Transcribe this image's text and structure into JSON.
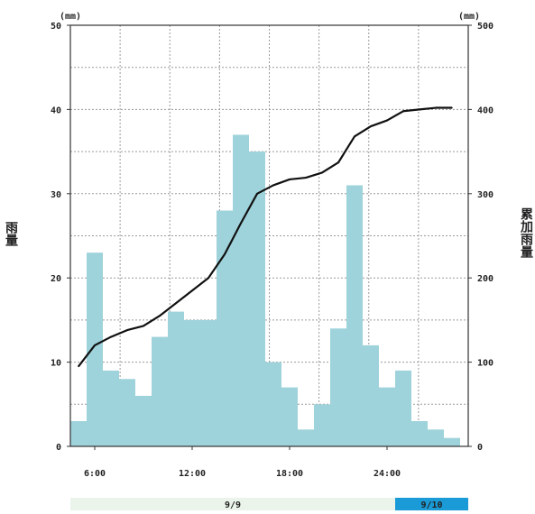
{
  "chart_data": {
    "type": "bar",
    "left_unit": "(mm)",
    "right_unit": "(mm)",
    "ylabel": "雨量",
    "y2label": "累加雨量",
    "ylim": [
      0,
      50
    ],
    "y2lim": [
      0,
      500
    ],
    "yticks": [
      "0",
      "10",
      "20",
      "30",
      "40",
      "50"
    ],
    "y2ticks": [
      "0",
      "100",
      "200",
      "300",
      "400",
      "500"
    ],
    "xlim": [
      4.5,
      29
    ],
    "xticks": [
      {
        "hour": 6,
        "label": "6:00"
      },
      {
        "hour": 12,
        "label": "12:00"
      },
      {
        "hour": 18,
        "label": "18:00"
      },
      {
        "hour": 24,
        "label": "24:00"
      }
    ],
    "grid": true,
    "series": [
      {
        "type": "bar",
        "color": "#9fd3db",
        "x": [
          5,
          6,
          7,
          8,
          9,
          10,
          11,
          12,
          13,
          14,
          15,
          16,
          17,
          18,
          19,
          20,
          21,
          22,
          23,
          24,
          25,
          26,
          27,
          28
        ],
        "values": [
          3,
          23,
          9,
          8,
          6,
          13,
          16,
          15,
          15,
          28,
          37,
          35,
          10,
          7,
          2,
          5,
          14,
          31,
          12,
          7,
          9,
          3,
          2,
          1
        ]
      },
      {
        "type": "line",
        "color": "#111111",
        "axis": "right",
        "x": [
          5,
          6,
          7,
          8,
          9,
          10,
          11,
          12,
          13,
          14,
          15,
          16,
          17,
          18,
          19,
          20,
          21,
          22,
          23,
          24,
          25,
          26,
          27,
          28
        ],
        "values": [
          95,
          120,
          130,
          138,
          143,
          155,
          170,
          185,
          200,
          228,
          265,
          300,
          310,
          317,
          319,
          325,
          337,
          368,
          380,
          387,
          398,
          400,
          402,
          402
        ]
      }
    ],
    "date_bar": [
      {
        "label": "9/9",
        "from": 4.5,
        "to": 24.5,
        "color": "#eaf4ea",
        "text_color": "#222222"
      },
      {
        "label": "9/10",
        "from": 24.5,
        "to": 29,
        "color": "#1a9ad6",
        "text_color": "#222222"
      }
    ]
  }
}
